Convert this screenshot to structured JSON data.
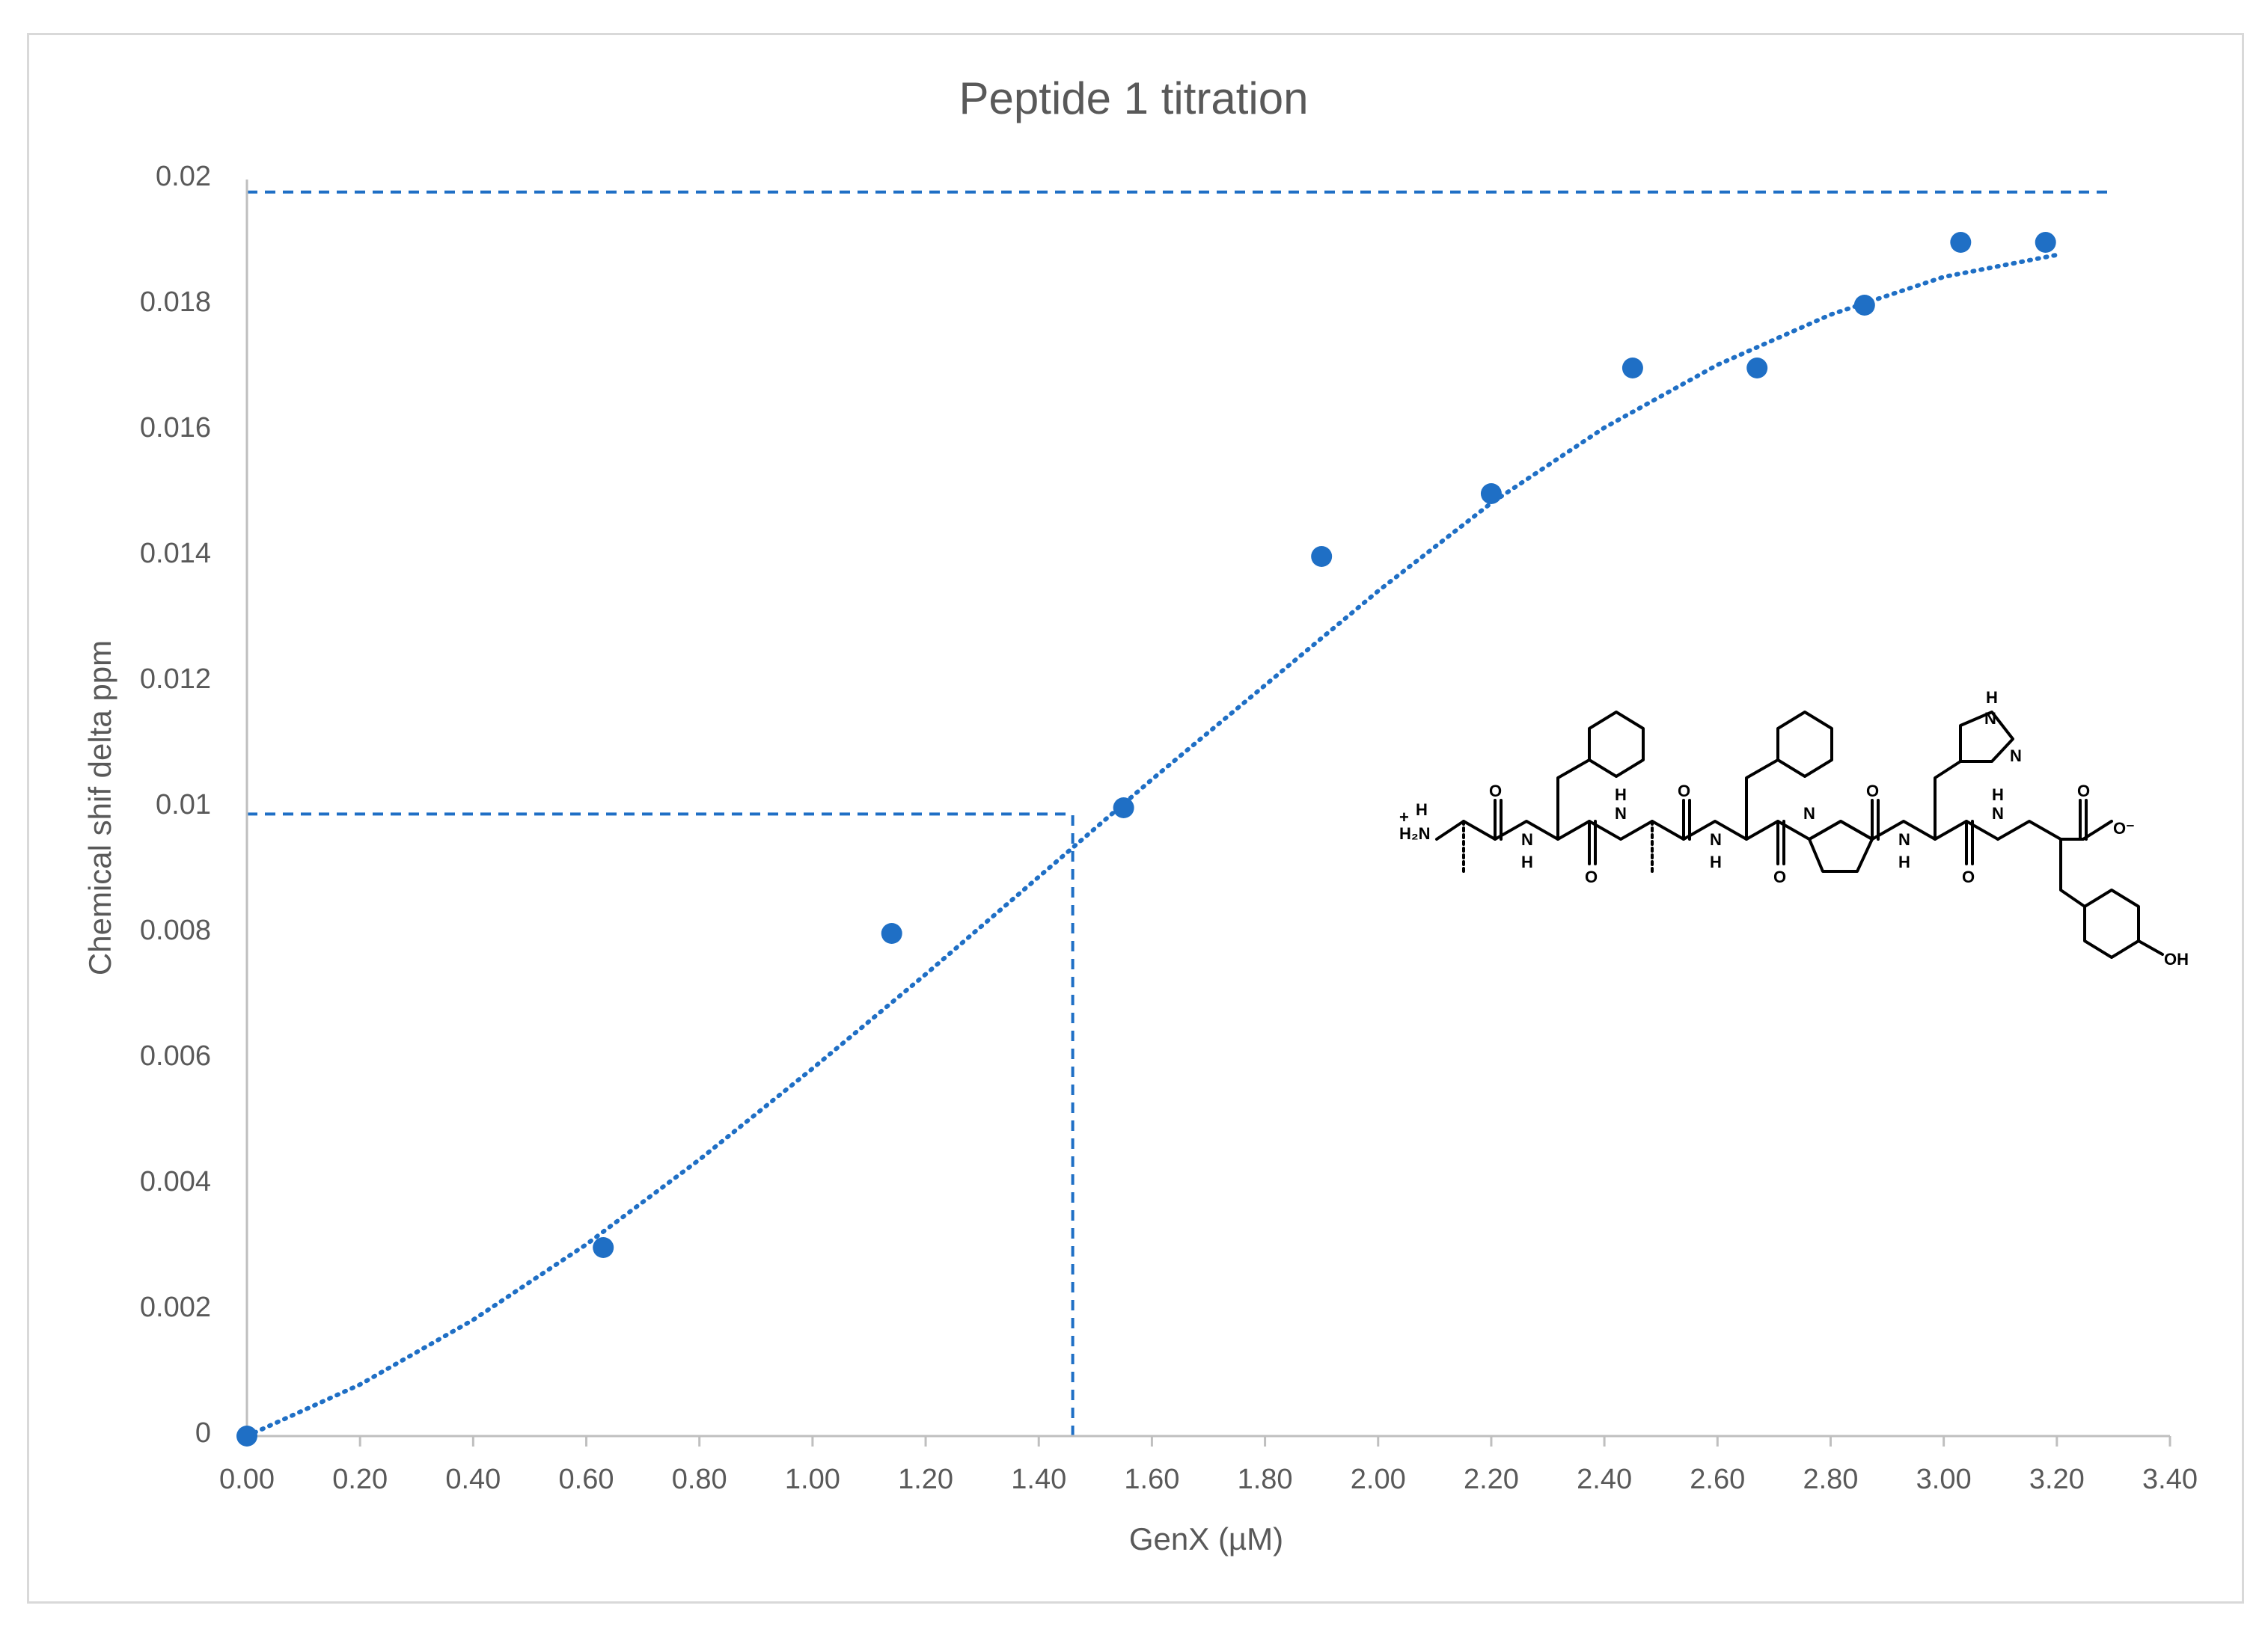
{
  "chart_data": {
    "type": "scatter",
    "title": "Peptide 1 titration",
    "xlabel": "GenX (µM)",
    "ylabel": "Chemical shif delta ppm",
    "xlim": [
      0,
      3.4
    ],
    "ylim": [
      0,
      0.02
    ],
    "x_ticks": [
      "0.00",
      "0.20",
      "0.40",
      "0.60",
      "0.80",
      "1.00",
      "1.20",
      "1.40",
      "1.60",
      "1.80",
      "2.00",
      "2.20",
      "2.40",
      "2.60",
      "2.80",
      "3.00",
      "3.20",
      "3.40"
    ],
    "y_ticks": [
      "0",
      "0.002",
      "0.004",
      "0.006",
      "0.008",
      "0.01",
      "0.012",
      "0.014",
      "0.016",
      "0.018",
      "0.02"
    ],
    "grid": false,
    "legend": "none",
    "series": [
      {
        "x": [
          0.0,
          0.63,
          1.14,
          1.55,
          1.9,
          2.2,
          2.45,
          2.67,
          2.86,
          3.03,
          3.18
        ],
        "y": [
          0.0,
          0.003,
          0.008,
          0.01,
          0.014,
          0.015,
          0.017,
          0.017,
          0.018,
          0.019,
          0.019
        ],
        "color": "#1f6fc5"
      }
    ],
    "trendline": {
      "style": "dotted",
      "color": "#1f6fc5",
      "x": [
        0.0,
        0.2,
        0.4,
        0.6,
        0.8,
        1.0,
        1.2,
        1.4,
        1.6,
        1.8,
        2.0,
        2.2,
        2.4,
        2.6,
        2.8,
        3.0,
        3.2
      ],
      "y": [
        0.0,
        0.00082,
        0.00185,
        0.00305,
        0.0044,
        0.00585,
        0.00735,
        0.0089,
        0.01045,
        0.01195,
        0.01345,
        0.01485,
        0.01605,
        0.01705,
        0.01785,
        0.01845,
        0.0188
      ]
    },
    "reference_lines": [
      {
        "orientation": "horizontal",
        "y": 0.0198,
        "x_from": 0,
        "x_to": 3.3,
        "style": "dashed",
        "color": "#1f6fc5"
      },
      {
        "orientation": "horizontal",
        "y": 0.0099,
        "x_from": 0,
        "x_to": 1.46,
        "style": "dashed",
        "color": "#1f6fc5"
      },
      {
        "orientation": "vertical",
        "x": 1.46,
        "y_from": 0,
        "y_to": 0.0099,
        "style": "dashed",
        "color": "#1f6fc5"
      }
    ]
  },
  "molecule": {
    "atoms": {
      "amine": "H",
      "amine_charge": "+",
      "amine_group": "H₂N",
      "n": "N",
      "h": "H",
      "o": "O",
      "oxide": "O⁻",
      "hydroxyl": "OH"
    }
  }
}
